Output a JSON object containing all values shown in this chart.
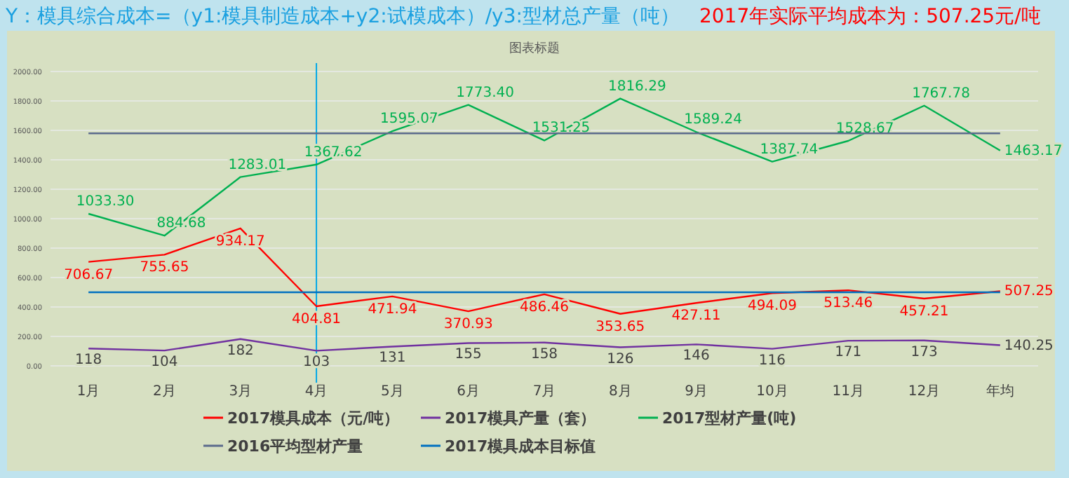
{
  "chart_data": {
    "type": "line",
    "title": "图表标题",
    "annotations": [
      "Y：模具综合成本=（y1:模具制造成本+y2:试模成本）/y3:型材总产量（吨）",
      "2017年实际平均成本为：507.25元/吨"
    ],
    "categories": [
      "1月",
      "2月",
      "3月",
      "4月",
      "5月",
      "6月",
      "7月",
      "8月",
      "9月",
      "10月",
      "11月",
      "12月",
      "年均"
    ],
    "series": [
      {
        "name": "2017模具成本（元/吨）",
        "color": "#ff0000",
        "values": [
          706.67,
          755.65,
          934.17,
          404.81,
          471.94,
          370.93,
          486.46,
          353.65,
          427.11,
          494.09,
          513.46,
          457.21,
          507.25
        ],
        "value_labels": [
          "706.67",
          "755.65",
          "934.17",
          "404.81",
          "471.94",
          "370.93",
          "486.46",
          "353.65",
          "427.11",
          "494.09",
          "513.46",
          "457.21",
          "507.25"
        ]
      },
      {
        "name": "2017模具产量（套）",
        "color": "#7030a0",
        "values": [
          118,
          104,
          182,
          103,
          131,
          155,
          158,
          126,
          146,
          116,
          171,
          173,
          140.25
        ],
        "value_labels": [
          "118",
          "104",
          "182",
          "103",
          "131",
          "155",
          "158",
          "126",
          "146",
          "116",
          "171",
          "173",
          "140.25"
        ]
      },
      {
        "name": "2017型材产量(吨)",
        "color": "#00b050",
        "values": [
          1033.3,
          884.68,
          1283.01,
          1367.62,
          1595.07,
          1773.4,
          1531.25,
          1816.29,
          1589.24,
          1387.74,
          1528.67,
          1767.78,
          1463.17
        ],
        "value_labels": [
          "1033.30",
          "884.68",
          "1283.01",
          "1367.62",
          "1595.07",
          "1773.40",
          "1531.25",
          "1816.29",
          "1589.24",
          "1387.74",
          "1528.67",
          "1767.78",
          "1463.17"
        ]
      },
      {
        "name": "2016平均型材产量",
        "color": "#5b6b8c",
        "values": [
          1580,
          1580,
          1580,
          1580,
          1580,
          1580,
          1580,
          1580,
          1580,
          1580,
          1580,
          1580,
          1580
        ]
      },
      {
        "name": "2017模具成本目标值",
        "color": "#0070c0",
        "values": [
          500,
          500,
          500,
          500,
          500,
          500,
          500,
          500,
          500,
          500,
          500,
          500,
          500
        ]
      }
    ],
    "ref_lines": [
      {
        "axis": "x",
        "value": "4月",
        "color": "#00a8e8"
      }
    ],
    "ylim": [
      0,
      2000
    ],
    "yticks": [
      {
        "value": 0,
        "label": "0.00"
      },
      {
        "value": 200,
        "label": "200.00"
      },
      {
        "value": 400,
        "label": "400.00"
      },
      {
        "value": 600,
        "label": "600.00"
      },
      {
        "value": 800,
        "label": "800.00"
      },
      {
        "value": 1000,
        "label": "1000.00"
      },
      {
        "value": 1200,
        "label": "1200.00"
      },
      {
        "value": 1400,
        "label": "1400.00"
      },
      {
        "value": 1600,
        "label": "1600.00"
      },
      {
        "value": 1800,
        "label": "1800.00"
      },
      {
        "value": 2000,
        "label": "2000.00"
      }
    ],
    "grid": "y",
    "legend": "bottom",
    "marker": "none",
    "line_style": "solid"
  }
}
